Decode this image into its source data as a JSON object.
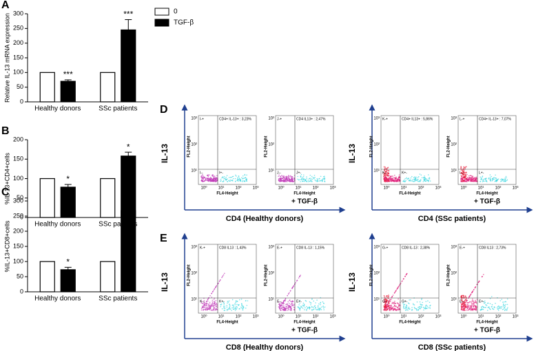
{
  "chart_data": [
    {
      "type": "bar",
      "panel_label": "A",
      "y_label": "Relative IL-13 mRNA expression",
      "categories": [
        "Healthy donors",
        "SSc patients"
      ],
      "series": [
        {
          "name": "0",
          "color": "#ffffff",
          "values": [
            100,
            100
          ]
        },
        {
          "name": "TGF-β",
          "color": "#000000",
          "values": [
            70,
            245
          ],
          "errors": [
            5,
            35
          ],
          "significance": [
            "***",
            "***"
          ]
        }
      ],
      "ylim": [
        0,
        300
      ],
      "yticks": [
        0,
        50,
        100,
        150,
        200,
        250,
        300
      ]
    },
    {
      "type": "bar",
      "panel_label": "B",
      "y_label": "%IL-13+CD4+cells",
      "categories": [
        "Healthy donors",
        "SSc patients"
      ],
      "series": [
        {
          "color": "#ffffff",
          "values": [
            100,
            100
          ]
        },
        {
          "color": "#000000",
          "values": [
            78,
            158
          ],
          "errors": [
            7,
            10
          ],
          "significance": [
            "*",
            "*"
          ]
        }
      ],
      "ylim": [
        0,
        200
      ],
      "yticks": [
        0,
        50,
        100,
        150,
        200
      ]
    },
    {
      "type": "bar",
      "panel_label": "C",
      "y_label": "%IL-13+CD8+cells",
      "categories": [
        "Healthy donors",
        "SSc patients"
      ],
      "series": [
        {
          "color": "#ffffff",
          "values": [
            100,
            100
          ]
        },
        {
          "color": "#000000",
          "values": [
            73,
            268
          ],
          "errors": [
            8,
            12
          ],
          "significance": [
            "*",
            "*"
          ]
        }
      ],
      "ylim": [
        0,
        300
      ],
      "yticks": [
        0,
        50,
        100,
        150,
        200,
        250,
        300
      ]
    }
  ],
  "flow": {
    "y_axis": "FL2-Height",
    "x_axis": "FL4-Height",
    "treated": "+ TGF-β",
    "marker": "IL-13",
    "ticks": [
      "10⁰",
      "10¹",
      "10²",
      "10³"
    ],
    "rows": [
      {
        "label": "D",
        "groups": [
          {
            "title": "CD4 (Healthy donors)",
            "plots": [
              {
                "gates": [
                  "I-+",
                  "CD4+ IL-13+ : 3,23%",
                  "I--",
                  "I+-"
                ]
              },
              {
                "gates": [
                  "J-+",
                  "CD4 IL13+ : 2,47%",
                  "J--",
                  "J+-"
                ]
              }
            ]
          },
          {
            "title": "CD4 (SSc patients)",
            "plots": [
              {
                "gates": [
                  "K-+",
                  "CD4+ IL13+ : 5,86%",
                  "K--",
                  "K+-"
                ]
              },
              {
                "gates": [
                  "L-+",
                  "CD4+ IL-13+ : 7,07%",
                  "L--",
                  "L+-"
                ]
              }
            ]
          }
        ]
      },
      {
        "label": "E",
        "groups": [
          {
            "title": "CD8 (Healthy donors)",
            "plots": [
              {
                "gates": [
                  "K-+",
                  "CD8 IL13 : 1,43%",
                  "K--",
                  "K+-"
                ]
              },
              {
                "gates": [
                  "E-+",
                  "CD8 IL-13 : 1,15%",
                  "E--",
                  "E+-"
                ]
              }
            ]
          },
          {
            "title": "CD8 (SSc patients)",
            "plots": [
              {
                "gates": [
                  "G-+",
                  "CD8 IL-13 : 2,38%",
                  "G--",
                  "G+-"
                ]
              },
              {
                "gates": [
                  "E-+",
                  "CD8 IL13 : 2,73%",
                  "E--",
                  "E+-"
                ]
              }
            ]
          }
        ]
      }
    ]
  }
}
